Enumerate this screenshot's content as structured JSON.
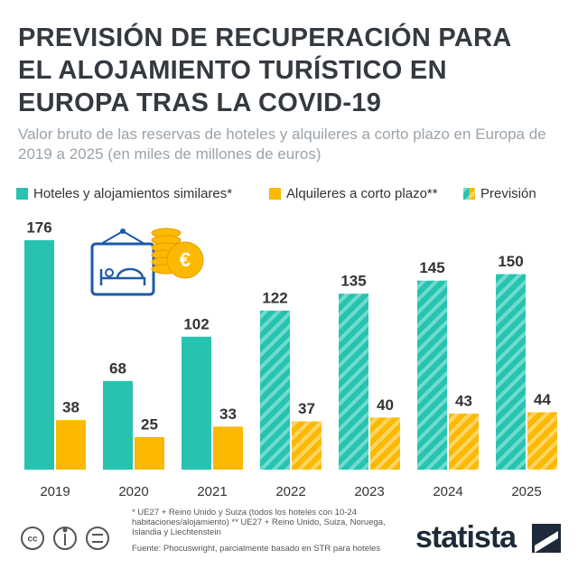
{
  "chart_data": {
    "type": "bar",
    "title": "PREVISIÓN DE RECUPERACIÓN PARA EL ALOJAMIENTO TURÍSTICO EN EUROPA TRAS LA COVID-19",
    "subtitle": "Valor bruto de las reservas de hoteles y alquileres a corto plazo en Europa de 2019 a 2025 (en miles de millones de euros)",
    "categories": [
      "2019",
      "2020",
      "2021",
      "2022",
      "2023",
      "2024",
      "2025"
    ],
    "series": [
      {
        "name": "Hoteles y alojamientos similares*",
        "color": "#27c3b0",
        "values": [
          176,
          68,
          102,
          122,
          135,
          145,
          150
        ]
      },
      {
        "name": "Alquileres a corto plazo**",
        "color": "#fbb900",
        "values": [
          38,
          25,
          33,
          37,
          40,
          43,
          44
        ]
      }
    ],
    "forecast_label": "Previsión",
    "forecast": [
      false,
      false,
      false,
      true,
      true,
      true,
      true
    ],
    "ylim": [
      0,
      176
    ],
    "grid": false,
    "notes": "* UE27 + Reino Unido y Suiza (todos los hoteles con 10-24 habitaciones/alojamiento) ** UE27 + Reino Unido, Suiza, Noruega, Islandia y Liechtenstein",
    "source": "Fuente: Phocuswright, parcialmente basado en STR para hoteles",
    "brand": "statista"
  }
}
